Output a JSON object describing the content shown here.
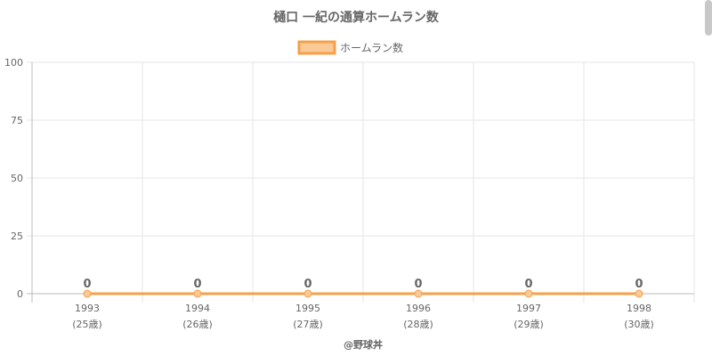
{
  "chart_data": {
    "type": "line",
    "title": "樋口 一紀の通算ホームラン数",
    "legend_position": "top",
    "categories": [
      "1993",
      "1994",
      "1995",
      "1996",
      "1997",
      "1998"
    ],
    "sub_labels": [
      "(25歳)",
      "(26歳)",
      "(27歳)",
      "(28歳)",
      "(29歳)",
      "(30歳)"
    ],
    "series": [
      {
        "name": "ホームラン数",
        "values": [
          0,
          0,
          0,
          0,
          0,
          0
        ],
        "color": "#f5a04a",
        "fill": "#f9c996"
      }
    ],
    "ylim": [
      0,
      100
    ],
    "yticks": [
      0,
      25,
      50,
      75,
      100
    ],
    "grid": true
  },
  "credit": "@野球丼"
}
